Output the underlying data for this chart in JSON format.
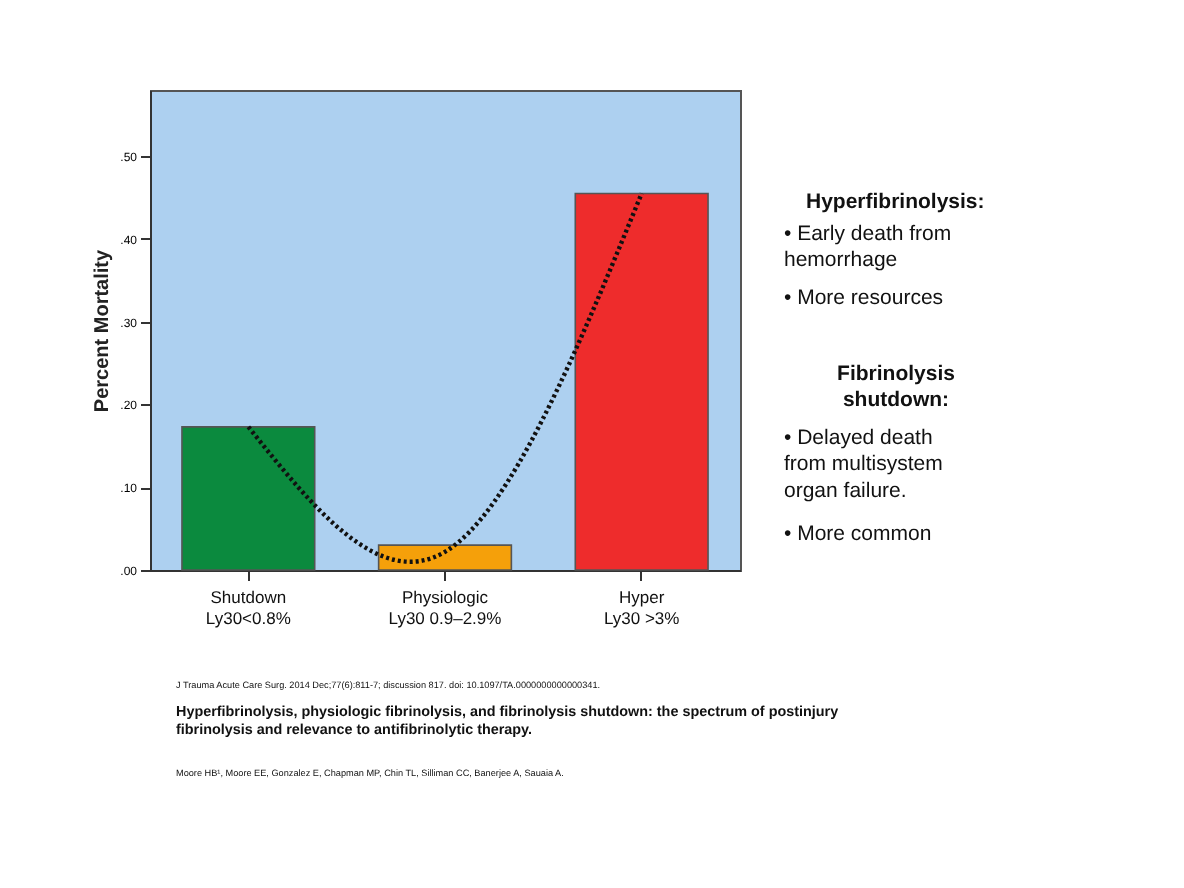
{
  "chart_data": {
    "type": "bar",
    "ylabel": "Percent Mortality",
    "categories": [
      "Shutdown\nLy30<0.8%",
      "Physiologic\nLy30 0.9–2.9%",
      "Hyper\nLy30 >3%"
    ],
    "series": [
      {
        "values": [
          0.173,
          0.03,
          0.455
        ],
        "colors": [
          "#0b8a3e",
          "#f5a00a",
          "#ee2c2c"
        ]
      },
      {
        "type": "line",
        "x": [
          "Shutdown\nLy30<0.8%",
          "Physiologic\nLy30 0.9–2.9%",
          "Hyper\nLy30 >3%"
        ],
        "values": [
          0.173,
          0.022,
          0.455
        ],
        "color": "#111111",
        "line_style": "dotted"
      }
    ],
    "ylim": [
      0,
      0.58
    ],
    "yticks": [
      {
        "value": 0,
        "label": ".00"
      },
      {
        "value": 0.1,
        "label": ".10"
      },
      {
        "value": 0.2,
        "label": ".20"
      },
      {
        "value": 0.3,
        "label": ".30"
      },
      {
        "value": 0.4,
        "label": ".40"
      },
      {
        "value": 0.5,
        "label": ".50"
      }
    ],
    "grid": false,
    "annotations": [
      "Hyperfibrinolysis:",
      "• Early death from hemorrhage",
      "• More resources",
      "Fibrinolysis shutdown:",
      "• Delayed death from multisystem organ failure.",
      "• More common",
      "J Trauma Acute Care Surg. 2014 Dec;77(6):811-7; discussion 817. doi: 10.1097/TA.0000000000000341.",
      "Hyperfibrinolysis, physiologic fibrinolysis, and fibrinolysis shutdown: the spectrum of postinjury fibrinolysis and relevance to antifibrinolytic therapy.",
      "Moore HB¹, Moore EE, Gonzalez E, Chapman MP, Chin TL, Silliman CC, Banerjee A, Sauaia A."
    ]
  }
}
